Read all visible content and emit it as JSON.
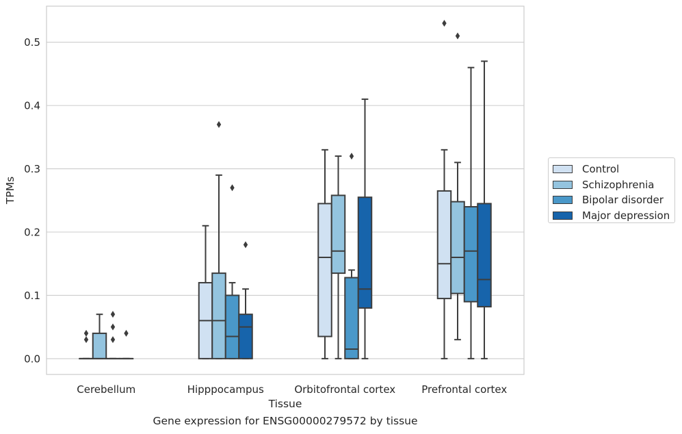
{
  "chart_data": {
    "type": "boxplot",
    "xlabel": "Tissue",
    "ylabel": "TPMs",
    "ylim": [
      -0.025,
      0.557
    ],
    "yticks": [
      0.0,
      0.1,
      0.2,
      0.3,
      0.4,
      0.5
    ],
    "ytick_labels": [
      "0.0",
      "0.1",
      "0.2",
      "0.3",
      "0.4",
      "0.5"
    ],
    "grid": true,
    "legend_position": "right",
    "categories": [
      "Cerebellum",
      "Hipppocampus",
      "Orbitofrontal cortex",
      "Prefrontal cortex"
    ],
    "series": [
      {
        "name": "Control",
        "color": "#d0e1f2",
        "boxes": [
          {
            "q1": 0.0,
            "median": 0.0,
            "q3": 0.0,
            "whislo": 0.0,
            "whishi": 0.0,
            "fliers": [
              0.04,
              0.03
            ]
          },
          {
            "q1": 0.0,
            "median": 0.06,
            "q3": 0.12,
            "whislo": 0.0,
            "whishi": 0.21,
            "fliers": []
          },
          {
            "q1": 0.035,
            "median": 0.16,
            "q3": 0.245,
            "whislo": 0.0,
            "whishi": 0.33,
            "fliers": []
          },
          {
            "q1": 0.095,
            "median": 0.15,
            "q3": 0.265,
            "whislo": 0.0,
            "whishi": 0.33,
            "fliers": [
              0.53
            ]
          }
        ]
      },
      {
        "name": "Schizophrenia",
        "color": "#94c4df",
        "boxes": [
          {
            "q1": 0.0,
            "median": 0.0,
            "q3": 0.04,
            "whislo": 0.0,
            "whishi": 0.07,
            "fliers": []
          },
          {
            "q1": 0.0,
            "median": 0.06,
            "q3": 0.135,
            "whislo": 0.0,
            "whishi": 0.29,
            "fliers": [
              0.37
            ]
          },
          {
            "q1": 0.135,
            "median": 0.17,
            "q3": 0.258,
            "whislo": 0.0,
            "whishi": 0.32,
            "fliers": []
          },
          {
            "q1": 0.103,
            "median": 0.16,
            "q3": 0.248,
            "whislo": 0.03,
            "whishi": 0.31,
            "fliers": [
              0.51
            ]
          }
        ]
      },
      {
        "name": "Bipolar disorder",
        "color": "#4a98c9",
        "boxes": [
          {
            "q1": 0.0,
            "median": 0.0,
            "q3": 0.0,
            "whislo": 0.0,
            "whishi": 0.0,
            "fliers": [
              0.07,
              0.05,
              0.03
            ]
          },
          {
            "q1": 0.0,
            "median": 0.035,
            "q3": 0.1,
            "whislo": 0.0,
            "whishi": 0.12,
            "fliers": [
              0.27
            ]
          },
          {
            "q1": 0.0,
            "median": 0.015,
            "q3": 0.128,
            "whislo": 0.0,
            "whishi": 0.14,
            "fliers": [
              0.32
            ]
          },
          {
            "q1": 0.09,
            "median": 0.17,
            "q3": 0.24,
            "whislo": 0.0,
            "whishi": 0.46,
            "fliers": []
          }
        ]
      },
      {
        "name": "Major depression",
        "color": "#1764ab",
        "boxes": [
          {
            "q1": 0.0,
            "median": 0.0,
            "q3": 0.0,
            "whislo": 0.0,
            "whishi": 0.0,
            "fliers": [
              0.04
            ]
          },
          {
            "q1": 0.0,
            "median": 0.05,
            "q3": 0.07,
            "whislo": 0.0,
            "whishi": 0.11,
            "fliers": [
              0.18
            ]
          },
          {
            "q1": 0.08,
            "median": 0.11,
            "q3": 0.255,
            "whislo": 0.0,
            "whishi": 0.41,
            "fliers": []
          },
          {
            "q1": 0.082,
            "median": 0.125,
            "q3": 0.245,
            "whislo": 0.0,
            "whishi": 0.47,
            "fliers": []
          }
        ]
      }
    ]
  },
  "caption": "Gene expression for ENSG00000279572 by tissue"
}
